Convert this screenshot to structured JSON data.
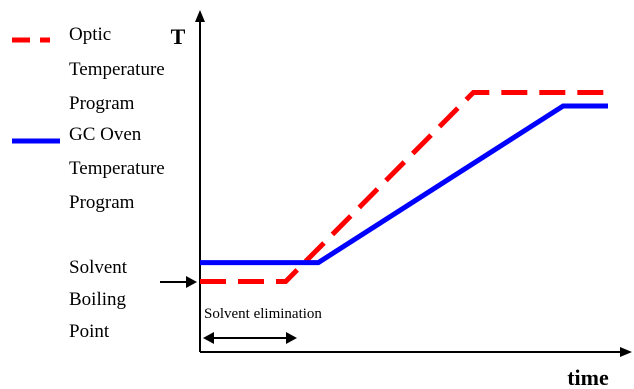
{
  "chart_data": {
    "type": "line",
    "title": "",
    "xlabel": "time",
    "ylabel": "T",
    "x_ticks": [],
    "y_ticks": [],
    "grid": false,
    "legend_position": "top-left",
    "xlim": [
      0,
      10
    ],
    "ylim": [
      0,
      10
    ],
    "series": [
      {
        "name": "Optic Temperature Program",
        "color": "#ff0000",
        "line_style": "dashed",
        "x": [
          0,
          2.1,
          6.7,
          10
        ],
        "y": [
          1.5,
          1.5,
          8.5,
          8.5
        ]
      },
      {
        "name": "GC Oven Temperature Program",
        "color": "#0000ff",
        "line_style": "solid",
        "x": [
          0,
          2.9,
          8.9,
          10
        ],
        "y": [
          2.2,
          2.2,
          8.0,
          8.0
        ]
      }
    ],
    "legend": [
      {
        "lines": [
          "Optic",
          "Temperature",
          "Program"
        ],
        "color": "#ff0000",
        "style": "dashed"
      },
      {
        "lines": [
          "GC Oven",
          "Temperature",
          "Program"
        ],
        "color": "#0000ff",
        "style": "solid"
      }
    ],
    "annotations": {
      "solvent_boiling_point": [
        "Solvent",
        "Boiling",
        "Point"
      ],
      "solvent_elimination": "Solvent elimination"
    }
  }
}
